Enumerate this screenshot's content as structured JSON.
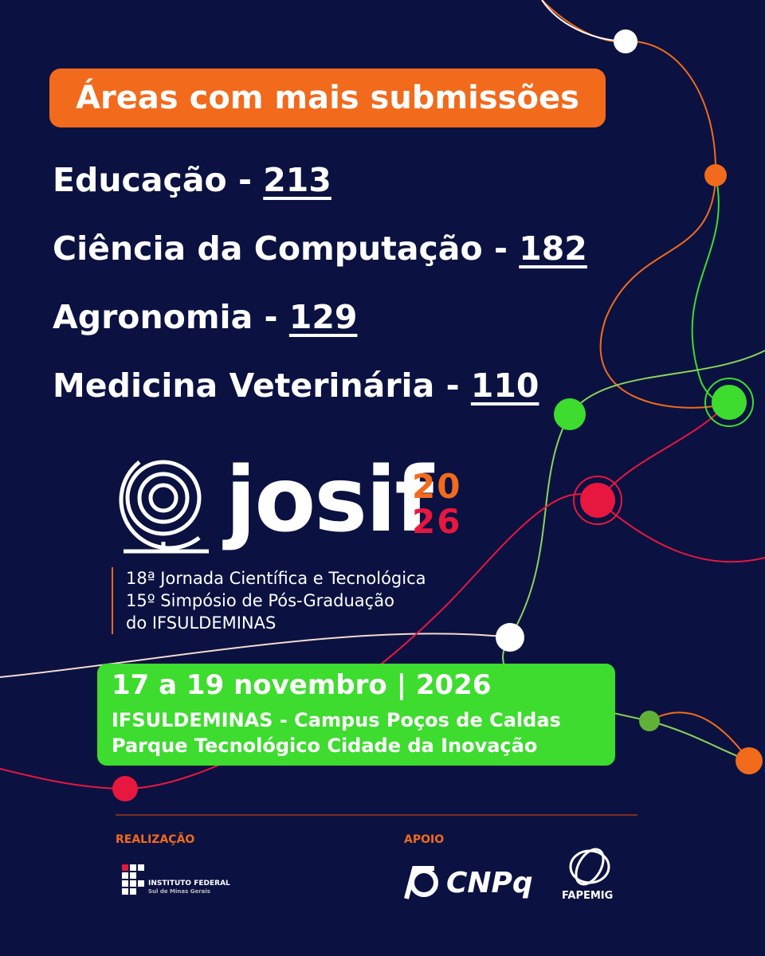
{
  "heading": "Áreas com mais submissões",
  "areas": [
    {
      "label": "Educação",
      "separator": "-",
      "count": 213
    },
    {
      "label": "Ciência da Computação",
      "separator": "-",
      "count": 182
    },
    {
      "label": "Agronomia",
      "separator": "-",
      "count": 129
    },
    {
      "label": "Medicina Veterinária",
      "separator": "-",
      "count": 110
    }
  ],
  "logo": {
    "name": "josif",
    "year_top": "20",
    "year_bottom": "26",
    "lines": [
      "18ª Jornada Científica e Tecnológica",
      "15º Simpósio de Pós-Graduação",
      "do IFSULDEMINAS"
    ]
  },
  "event": {
    "dates": "17 a 19 novembro | 2026",
    "venue": "IFSULDEMINAS - Campus Poços de Caldas",
    "place": "Parque Tecnológico Cidade da Inovação"
  },
  "footer": {
    "organizer_heading": "REALIZAÇÃO",
    "organizer_name": "INSTITUTO FEDERAL",
    "organizer_sub": "Sul de Minas Gerais",
    "support_heading": "APOIO",
    "sponsors": [
      "CNPq",
      "FAPEMIG"
    ]
  }
}
